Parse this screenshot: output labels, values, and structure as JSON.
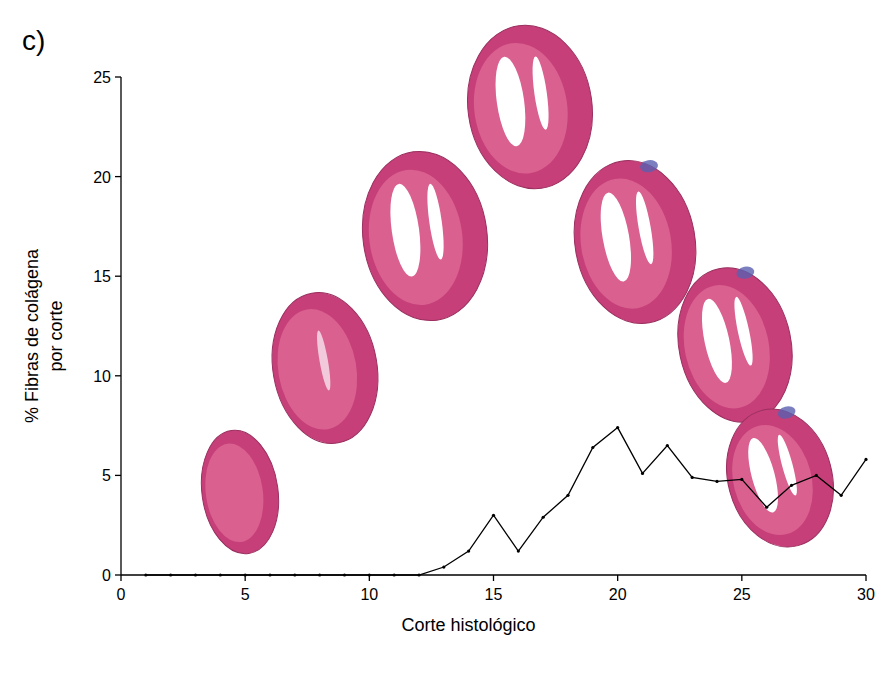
{
  "chart_data": {
    "type": "line",
    "panel_label": "c)",
    "x_label": "Corte histológico",
    "y_label": "% Fibras de colágena por corte",
    "x": [
      1,
      2,
      3,
      4,
      5,
      6,
      7,
      8,
      9,
      10,
      11,
      12,
      13,
      14,
      15,
      16,
      17,
      18,
      19,
      20,
      21,
      22,
      23,
      24,
      25,
      26,
      27,
      28,
      29,
      30
    ],
    "series": [
      {
        "name": "% Fibras de colágena",
        "color": "#000000",
        "marker": "circle",
        "line_style": "solid",
        "values": [
          0,
          0,
          0,
          0,
          0,
          0,
          0,
          0,
          0,
          0,
          0,
          0,
          0.4,
          1.2,
          3.0,
          1.2,
          2.9,
          4.0,
          6.4,
          7.4,
          5.1,
          6.5,
          4.9,
          4.7,
          4.8,
          3.4,
          4.5,
          5.0,
          4.0,
          5.8
        ]
      }
    ],
    "xlim": [
      0,
      30
    ],
    "xticks": [
      0,
      5,
      10,
      15,
      20,
      25,
      30
    ],
    "ylim": [
      0,
      25
    ],
    "yticks": [
      0,
      5,
      10,
      15,
      20,
      25
    ],
    "grid": false
  }
}
